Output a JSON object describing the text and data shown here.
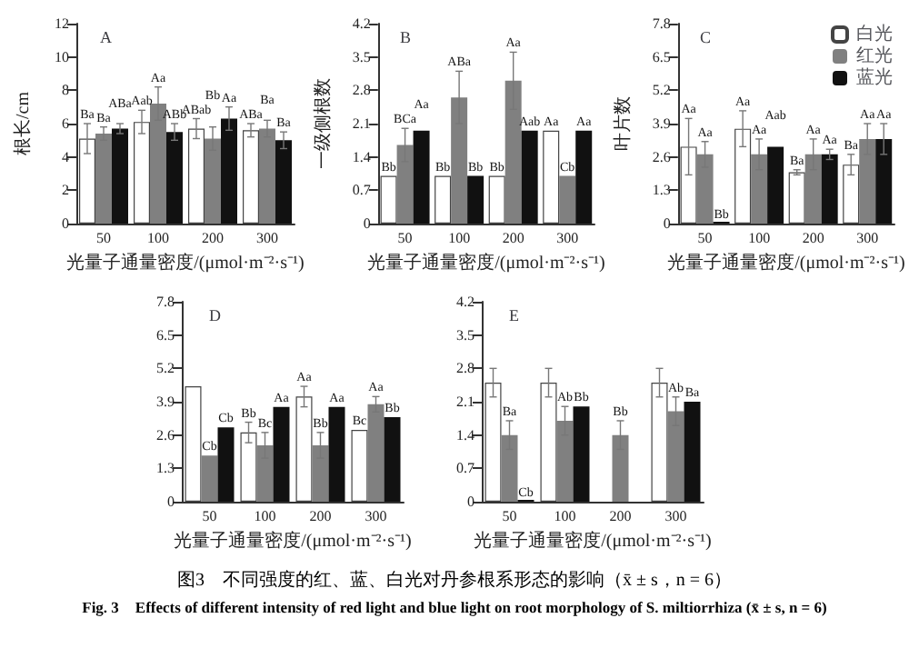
{
  "chart_data": [
    {
      "type": "bar",
      "title": "A",
      "xlabel": "光量子通量密度/(μmol·m⁻²·s⁻¹)",
      "ylabel": "根长/cm",
      "categories": [
        "50",
        "100",
        "200",
        "300"
      ],
      "ylim": [
        0,
        12
      ],
      "yticks": [
        0,
        2,
        4,
        6,
        8,
        10,
        12
      ],
      "annotations": [
        "图3　不同强度的红、蓝、白光对丹参根系形态的影响（x̄ ± s，n = 6）",
        "Fig. 3　Effects of different intensity of red light and blue light on root morphology of S. miltiorrhiza (x̄ ± s, n = 6)"
      ],
      "series": [
        {
          "color": "#ffffff",
          "values": [
            5.1,
            6.1,
            5.7,
            5.6
          ],
          "errors": [
            0.9,
            0.7,
            0.6,
            0.4
          ],
          "value_labels": [
            "Ba",
            "Aab",
            "ABab",
            "ABa"
          ]
        },
        {
          "color": "#808080",
          "values": [
            5.4,
            7.2,
            5.1,
            5.7
          ],
          "errors": [
            0.4,
            1.0,
            0.7,
            0.5
          ],
          "value_labels": [
            "Ba",
            "Aa",
            "Bb",
            "Ba"
          ]
        },
        {
          "color": "#111111",
          "values": [
            5.7,
            5.5,
            6.3,
            5.0
          ],
          "errors": [
            0.3,
            0.5,
            0.7,
            0.5
          ],
          "value_labels": [
            "ABa",
            "ABb",
            "Aa",
            "Ba"
          ]
        }
      ]
    },
    {
      "type": "bar",
      "title": "B",
      "xlabel": "光量子通量密度/(μmol·m⁻²·s⁻¹)",
      "ylabel": "一级侧根数",
      "categories": [
        "50",
        "100",
        "200",
        "300"
      ],
      "ylim": [
        0,
        4.2
      ],
      "yticks": [
        0,
        0.7,
        1.4,
        2.1,
        2.8,
        3.5,
        4.2
      ],
      "series": [
        {
          "color": "#ffffff",
          "values": [
            1.0,
            1.0,
            1.0,
            1.95
          ],
          "errors": [
            null,
            null,
            null,
            null
          ],
          "value_labels": [
            "Bb",
            "Bb",
            "Bb",
            "Aa"
          ]
        },
        {
          "color": "#808080",
          "values": [
            1.65,
            2.65,
            3.0,
            1.0
          ],
          "errors": [
            0.35,
            0.55,
            0.6,
            null
          ],
          "value_labels": [
            "BCa",
            "ABa",
            "Aa",
            "Cb"
          ]
        },
        {
          "color": "#111111",
          "values": [
            1.95,
            1.0,
            1.95,
            1.95
          ],
          "errors": [
            null,
            null,
            null,
            null
          ],
          "value_labels": [
            "Aa",
            "Bb",
            "Aab",
            "Aa"
          ]
        }
      ]
    },
    {
      "type": "bar",
      "title": "C",
      "ylabel": "叶片数",
      "categories": [
        "50",
        "100",
        "200",
        "300"
      ],
      "ylim": [
        0,
        7.8
      ],
      "yticks": [
        0,
        1.3,
        2.6,
        3.9,
        5.2,
        6.5,
        7.8
      ],
      "legend": "top right",
      "xlabel": "光量子通量密度/(μmol·m⁻²·s⁻¹)",
      "series": [
        {
          "name": "白光",
          "color": "#ffffff",
          "values": [
            3.0,
            3.7,
            2.0,
            2.3
          ],
          "errors": [
            1.1,
            0.7,
            0.1,
            0.4
          ],
          "value_labels": [
            "Aa",
            "Aa",
            "Ba",
            "Ba"
          ]
        },
        {
          "name": "红光",
          "color": "#808080",
          "values": [
            2.7,
            2.7,
            2.7,
            3.3
          ],
          "errors": [
            0.5,
            0.6,
            0.6,
            0.6
          ],
          "value_labels": [
            "Aa",
            "Aa",
            "Aa",
            "Aa"
          ]
        },
        {
          "name": "蓝光",
          "color": "#111111",
          "values": [
            0,
            3.0,
            2.7,
            3.3
          ],
          "errors": [
            null,
            null,
            0.2,
            0.6
          ],
          "value_labels": [
            "Bb",
            "Aab",
            "Aa",
            "Aa"
          ]
        }
      ]
    },
    {
      "type": "bar",
      "title": "D",
      "xlabel": "光量子通量密度/(μmol·m⁻²·s⁻¹)",
      "categories": [
        "50",
        "100",
        "200",
        "300"
      ],
      "ylim": [
        0,
        7.8
      ],
      "yticks": [
        0,
        1.3,
        2.6,
        3.9,
        5.2,
        6.5,
        7.8
      ],
      "series": [
        {
          "color": "#ffffff",
          "values": [
            4.5,
            2.7,
            4.1,
            2.8
          ],
          "errors": [
            null,
            0.4,
            0.4,
            null
          ],
          "value_labels": [
            null,
            "Bb",
            "Aa",
            "Bc"
          ]
        },
        {
          "color": "#808080",
          "values": [
            1.8,
            2.2,
            2.2,
            3.8
          ],
          "errors": [
            null,
            0.5,
            0.5,
            0.3
          ],
          "value_labels": [
            "Cb",
            "Bc",
            "Bb",
            "Aa"
          ]
        },
        {
          "color": "#111111",
          "values": [
            2.9,
            3.7,
            3.7,
            3.3
          ],
          "errors": [
            null,
            null,
            null,
            null
          ],
          "value_labels": [
            "Cb",
            "Aa",
            "Aa",
            "Bb"
          ]
        }
      ]
    },
    {
      "type": "bar",
      "title": "E",
      "xlabel": "光量子通量密度/(μmol·m⁻²·s⁻¹)",
      "categories": [
        "50",
        "100",
        "200",
        "300"
      ],
      "ylim": [
        0,
        4.2
      ],
      "yticks": [
        0,
        0.7,
        1.4,
        2.1,
        2.8,
        3.5,
        4.2
      ],
      "series": [
        {
          "color": "#ffffff",
          "values": [
            2.5,
            2.5,
            null,
            2.5
          ],
          "errors": [
            0.3,
            0.3,
            null,
            0.3
          ],
          "value_labels": [
            null,
            null,
            null,
            null
          ]
        },
        {
          "color": "#808080",
          "values": [
            1.4,
            1.7,
            1.4,
            1.9
          ],
          "errors": [
            0.3,
            0.3,
            0.3,
            0.3
          ],
          "value_labels": [
            "Ba",
            "Ab",
            "Bb",
            "Ab"
          ]
        },
        {
          "color": "#111111",
          "values": [
            0,
            2.0,
            null,
            2.1
          ],
          "errors": [
            null,
            null,
            null,
            null
          ],
          "value_labels": [
            "Cb",
            "Bb",
            null,
            "Ba"
          ]
        }
      ]
    }
  ]
}
